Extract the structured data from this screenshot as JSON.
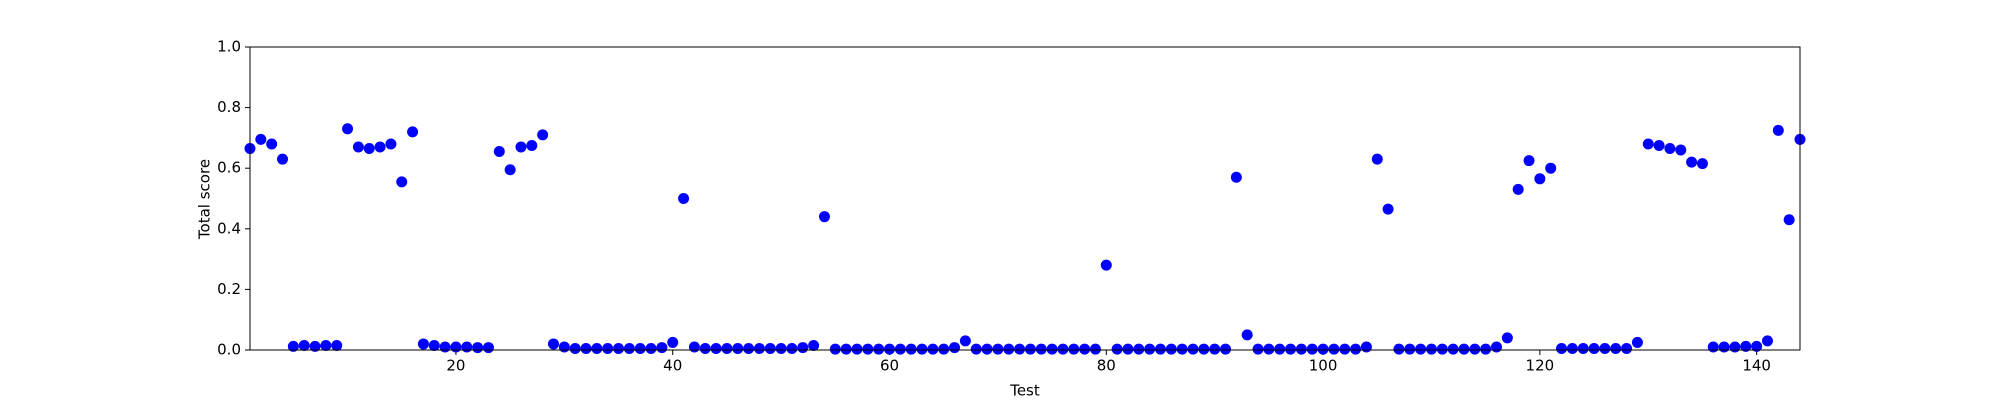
{
  "chart_data": {
    "type": "scatter",
    "xlabel": "Test",
    "ylabel": "Total score",
    "x": [
      1,
      2,
      3,
      4,
      5,
      6,
      7,
      8,
      9,
      10,
      11,
      12,
      13,
      14,
      15,
      16,
      17,
      18,
      19,
      20,
      21,
      22,
      23,
      24,
      25,
      26,
      27,
      28,
      29,
      30,
      31,
      32,
      33,
      34,
      35,
      36,
      37,
      38,
      39,
      40,
      41,
      42,
      43,
      44,
      45,
      46,
      47,
      48,
      49,
      50,
      51,
      52,
      53,
      54,
      55,
      56,
      57,
      58,
      59,
      60,
      61,
      62,
      63,
      64,
      65,
      66,
      67,
      68,
      69,
      70,
      71,
      72,
      73,
      74,
      75,
      76,
      77,
      78,
      79,
      80,
      81,
      82,
      83,
      84,
      85,
      86,
      87,
      88,
      89,
      90,
      91,
      92,
      93,
      94,
      95,
      96,
      97,
      98,
      99,
      100,
      101,
      102,
      103,
      104,
      105,
      106,
      107,
      108,
      109,
      110,
      111,
      112,
      113,
      114,
      115,
      116,
      117,
      118,
      119,
      120,
      121,
      122,
      123,
      124,
      125,
      126,
      127,
      128,
      129,
      130,
      131,
      132,
      133,
      134,
      135,
      136,
      137,
      138,
      139,
      140,
      141,
      142,
      143,
      144
    ],
    "values": [
      0.665,
      0.695,
      0.68,
      0.63,
      0.012,
      0.015,
      0.012,
      0.015,
      0.015,
      0.73,
      0.67,
      0.665,
      0.67,
      0.68,
      0.555,
      0.72,
      0.02,
      0.015,
      0.01,
      0.01,
      0.01,
      0.008,
      0.008,
      0.655,
      0.595,
      0.67,
      0.675,
      0.71,
      0.02,
      0.01,
      0.005,
      0.005,
      0.005,
      0.005,
      0.005,
      0.005,
      0.005,
      0.005,
      0.008,
      0.025,
      0.5,
      0.01,
      0.005,
      0.005,
      0.005,
      0.005,
      0.005,
      0.005,
      0.005,
      0.005,
      0.005,
      0.008,
      0.015,
      0.44,
      0.003,
      0.003,
      0.003,
      0.003,
      0.003,
      0.003,
      0.003,
      0.003,
      0.003,
      0.003,
      0.003,
      0.008,
      0.03,
      0.003,
      0.003,
      0.003,
      0.003,
      0.003,
      0.003,
      0.003,
      0.003,
      0.003,
      0.003,
      0.003,
      0.003,
      0.28,
      0.003,
      0.003,
      0.003,
      0.003,
      0.003,
      0.003,
      0.003,
      0.003,
      0.003,
      0.003,
      0.003,
      0.57,
      0.05,
      0.003,
      0.003,
      0.003,
      0.003,
      0.003,
      0.003,
      0.003,
      0.003,
      0.003,
      0.003,
      0.01,
      0.63,
      0.465,
      0.003,
      0.003,
      0.003,
      0.003,
      0.003,
      0.003,
      0.003,
      0.003,
      0.003,
      0.01,
      0.04,
      0.53,
      0.625,
      0.565,
      0.6,
      0.005,
      0.005,
      0.005,
      0.005,
      0.005,
      0.005,
      0.005,
      0.025,
      0.68,
      0.675,
      0.665,
      0.66,
      0.62,
      0.615,
      0.01,
      0.01,
      0.01,
      0.012,
      0.012,
      0.03,
      0.725,
      0.43,
      0.695
    ],
    "color": "#0000ff",
    "xlim": [
      1,
      144
    ],
    "xticks": [
      20,
      40,
      60,
      80,
      100,
      120,
      140
    ],
    "ylim": [
      0,
      1
    ],
    "yticks": [
      {
        "value": 0,
        "label": "0.0"
      },
      0.2,
      0.4,
      0.6,
      0.8,
      {
        "value": 1,
        "label": "1.0"
      }
    ]
  }
}
